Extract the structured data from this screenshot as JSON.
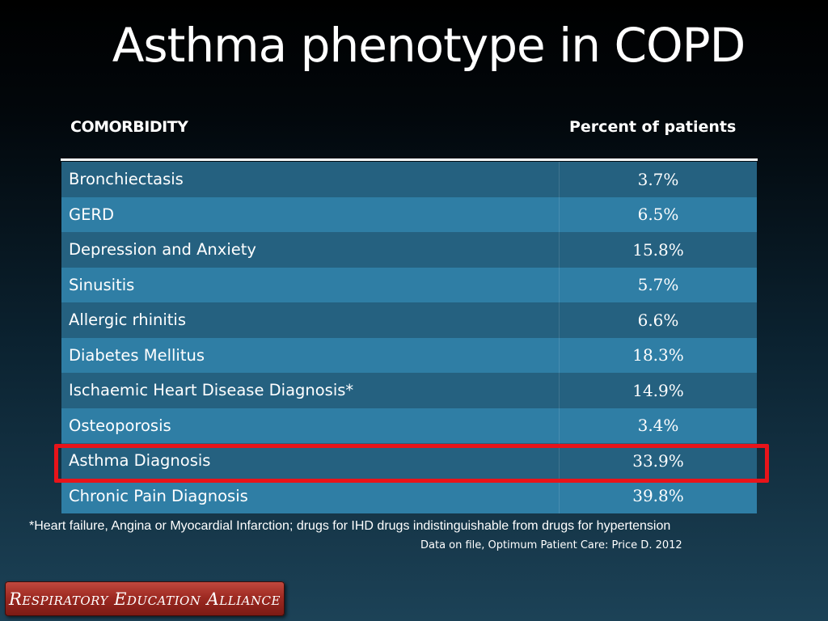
{
  "slide": {
    "title": "Asthma phenotype in COPD"
  },
  "table": {
    "headers": {
      "left": "COMORBIDITY",
      "right": "Percent of patients"
    },
    "rows": [
      {
        "label": "Bronchiectasis",
        "value": "3.7%"
      },
      {
        "label": "GERD",
        "value": "6.5%"
      },
      {
        "label": "Depression and Anxiety",
        "value": "15.8%"
      },
      {
        "label": "Sinusitis",
        "value": "5.7%"
      },
      {
        "label": "Allergic rhinitis",
        "value": "6.6%"
      },
      {
        "label": "Diabetes Mellitus",
        "value": "18.3%"
      },
      {
        "label": "Ischaemic Heart Disease Diagnosis*",
        "value": "14.9%"
      },
      {
        "label": "Osteoporosis",
        "value": "3.4%"
      },
      {
        "label": "Asthma Diagnosis",
        "value": "33.9%"
      },
      {
        "label": "Chronic Pain Diagnosis",
        "value": "39.8%"
      }
    ],
    "highlighted_row": "Asthma Diagnosis",
    "colors": {
      "row_dark": "#256180",
      "row_light": "#2f7ea5",
      "highlight": "#e8141a"
    }
  },
  "footnote": "*Heart failure, Angina or Myocardial Infarction; drugs for IHD drugs indistinguishable from drugs for hypertension",
  "source": "Data on file, Optimum Patient Care: Price D. 2012",
  "logo": {
    "text": "Respiratory Education Alliance",
    "color": "#9e2a22"
  }
}
